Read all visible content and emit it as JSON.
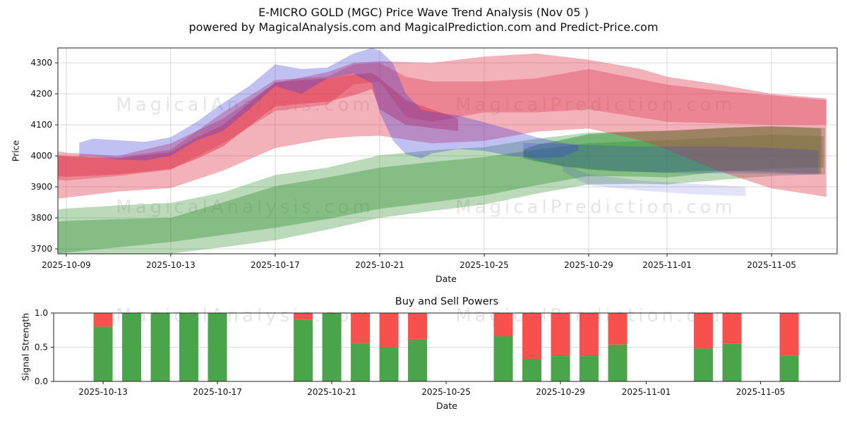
{
  "figure": {
    "title_line1": "E-MICRO GOLD (MGC) Price Wave Trend Analysis (Nov 05 )",
    "title_line2": "powered by MagicalAnalysis.com and MagicalPrediction.com and Predict-Price.com",
    "watermark_left": "MagicalAnalysis.com",
    "watermark_right": "MagicalPrediction.com",
    "watermark_color": "#8a8a8a",
    "background": "#ffffff",
    "grid_color": "#d9d9d9",
    "spine_color": "#222222",
    "text_color": "#121212"
  },
  "chart_data": [
    {
      "type": "area",
      "name": "price-wave-trend",
      "xlabel": "Date",
      "ylabel": "Price",
      "x_ticks": [
        "2025-10-09",
        "2025-10-13",
        "2025-10-17",
        "2025-10-21",
        "2025-10-25",
        "2025-10-29",
        "2025-11-01",
        "2025-11-05"
      ],
      "x_tick_days": [
        0,
        4,
        8,
        12,
        16,
        20,
        23,
        27
      ],
      "y_ticks": [
        3700,
        3800,
        3900,
        4000,
        4100,
        4200,
        4300
      ],
      "x_origin_date": "2025-10-09",
      "x_range_days": [
        -0.32,
        29.51
      ],
      "y_range": [
        3684,
        4348
      ],
      "grid": true,
      "legend": "none",
      "bands": [
        {
          "name": "green-outer",
          "color": "#2f8f2f",
          "opacity": 0.33,
          "x": [
            -0.3,
            0,
            2,
            4,
            6,
            8,
            10,
            12,
            14,
            16,
            18,
            20,
            22,
            23,
            25,
            27,
            28,
            29.05
          ],
          "upper": [
            3828,
            3830,
            3840,
            3848,
            3882,
            3938,
            3962,
            4002,
            4018,
            4028,
            4055,
            4075,
            4080,
            4082,
            4088,
            4095,
            4093,
            4090
          ],
          "lower": [
            3648,
            3650,
            3668,
            3685,
            3705,
            3728,
            3762,
            3800,
            3822,
            3843,
            3878,
            3908,
            3910,
            3908,
            3922,
            3935,
            3938,
            3940
          ]
        },
        {
          "name": "green-inner",
          "color": "#2f8f2f",
          "opacity": 0.38,
          "x": [
            -0.3,
            0,
            2,
            4,
            6,
            8,
            10,
            12,
            14,
            16,
            18,
            20,
            22,
            23,
            25,
            27,
            28,
            29.0
          ],
          "upper": [
            3788,
            3790,
            3796,
            3800,
            3850,
            3902,
            3930,
            3962,
            3980,
            3996,
            4020,
            4040,
            4048,
            4050,
            4060,
            4068,
            4066,
            4063
          ],
          "lower": [
            3686,
            3688,
            3705,
            3722,
            3745,
            3768,
            3796,
            3829,
            3850,
            3872,
            3905,
            3935,
            3933,
            3930,
            3948,
            3958,
            3962,
            3962
          ]
        },
        {
          "name": "green-forecast",
          "color": "#2f8f2f",
          "opacity": 0.5,
          "x": [
            17.5,
            18,
            19,
            20,
            21,
            22,
            23,
            24,
            25,
            26,
            27,
            28,
            28.9
          ],
          "upper": [
            4020,
            4035,
            4052,
            4070,
            4075,
            4078,
            4080,
            4085,
            4090,
            4093,
            4095,
            4092,
            4088
          ],
          "lower": [
            3992,
            3982,
            3966,
            3956,
            3950,
            3948,
            3946,
            3950,
            3952,
            3950,
            3948,
            3944,
            3942
          ]
        },
        {
          "name": "red-outer",
          "color": "#e0314a",
          "opacity": 0.38,
          "x": [
            -0.3,
            0,
            2,
            4,
            6,
            8,
            10,
            11,
            12,
            14,
            16,
            18,
            20,
            22,
            23,
            25,
            27,
            29.1
          ],
          "upper": [
            4015,
            4010,
            4000,
            4040,
            4120,
            4235,
            4270,
            4300,
            4305,
            4300,
            4320,
            4330,
            4310,
            4280,
            4255,
            4230,
            4200,
            4185
          ],
          "lower": [
            3862,
            3865,
            3885,
            3896,
            3952,
            4025,
            4055,
            4062,
            4065,
            4040,
            4048,
            4078,
            4088,
            4050,
            4020,
            3950,
            3895,
            3868
          ]
        },
        {
          "name": "red-mid",
          "color": "#e0314a",
          "opacity": 0.34,
          "x": [
            -0.3,
            0,
            2,
            4,
            6,
            8,
            10,
            11,
            12,
            13,
            14,
            16,
            18,
            20,
            23,
            25,
            27,
            29.1
          ],
          "upper": [
            4002,
            4000,
            3995,
            4020,
            4140,
            4245,
            4255,
            4295,
            4300,
            4255,
            4240,
            4240,
            4250,
            4280,
            4230,
            4210,
            4195,
            4180
          ],
          "lower": [
            3922,
            3920,
            3935,
            3955,
            4040,
            4145,
            4165,
            4230,
            4240,
            4125,
            4110,
            4140,
            4140,
            4150,
            4110,
            4105,
            4100,
            4100
          ]
        },
        {
          "name": "red-core",
          "color": "#e0314a",
          "opacity": 0.45,
          "x": [
            -0.3,
            0,
            2,
            4,
            5,
            6,
            8,
            10,
            11,
            11.7,
            12,
            13,
            14,
            15
          ],
          "upper": [
            4000,
            3998,
            3992,
            4012,
            4060,
            4100,
            4238,
            4250,
            4262,
            4268,
            4250,
            4180,
            4150,
            4120
          ],
          "lower": [
            3934,
            3932,
            3940,
            3958,
            3990,
            4030,
            4160,
            4175,
            4195,
            4215,
            4150,
            4100,
            4090,
            4080
          ]
        },
        {
          "name": "blue-main",
          "color": "#3c3cd9",
          "opacity": 0.32,
          "x": [
            0.5,
            1,
            2,
            3,
            4,
            5,
            6,
            7,
            8,
            9,
            10,
            11,
            11.7,
            12,
            12.5,
            13,
            13.6,
            14,
            15,
            16,
            17,
            18,
            19,
            19.6
          ],
          "upper": [
            4042,
            4055,
            4050,
            4045,
            4060,
            4110,
            4170,
            4225,
            4295,
            4280,
            4285,
            4330,
            4348,
            4340,
            4300,
            4200,
            4150,
            4142,
            4130,
            4108,
            4085,
            4060,
            4042,
            4035
          ],
          "lower": [
            3998,
            3998,
            3988,
            3985,
            4000,
            4050,
            4080,
            4150,
            4225,
            4200,
            4250,
            4265,
            4235,
            4140,
            4050,
            4005,
            3992,
            4008,
            4022,
            4016,
            4000,
            3992,
            3996,
            4018
          ]
        },
        {
          "name": "blue-tail",
          "color": "#3c3cd9",
          "opacity": 0.24,
          "x": [
            17.5,
            18,
            19,
            20,
            21,
            22,
            23,
            24,
            25,
            26,
            27,
            28,
            28.8
          ],
          "upper": [
            4042,
            4040,
            4038,
            4035,
            4032,
            4030,
            4030,
            4030,
            4030,
            4028,
            4026,
            4022,
            4018
          ],
          "lower": [
            4002,
            3985,
            3968,
            3958,
            3952,
            3948,
            3945,
            3944,
            3944,
            3943,
            3942,
            3940,
            3940
          ]
        },
        {
          "name": "blue-sliver",
          "color": "#3c3cd9",
          "opacity": 0.15,
          "x": [
            19,
            20,
            22,
            24,
            26
          ],
          "upper": [
            3975,
            3940,
            3920,
            3910,
            3900
          ],
          "lower": [
            3950,
            3905,
            3888,
            3876,
            3870
          ]
        }
      ]
    },
    {
      "type": "bar",
      "name": "buy-sell-powers",
      "title": "Buy and Sell Powers",
      "xlabel": "Date",
      "ylabel": "Signal Strength",
      "x_ticks": [
        "2025-10-13",
        "2025-10-17",
        "2025-10-21",
        "2025-10-25",
        "2025-10-29",
        "2025-11-01",
        "2025-11-05"
      ],
      "y_ticks": [
        "0.0",
        "0.5",
        "1.0"
      ],
      "x_origin_date": "2025-10-13",
      "ylim": [
        0,
        1
      ],
      "buy_color": "#4aa54a",
      "sell_color": "#f8504d",
      "bars": [
        {
          "date": "2025-10-13",
          "buy": 0.8,
          "sell": 0.2
        },
        {
          "date": "2025-10-14",
          "buy": 1.0,
          "sell": 0.0
        },
        {
          "date": "2025-10-15",
          "buy": 1.0,
          "sell": 0.0
        },
        {
          "date": "2025-10-16",
          "buy": 1.0,
          "sell": 0.0
        },
        {
          "date": "2025-10-17",
          "buy": 1.0,
          "sell": 0.0
        },
        {
          "date": "2025-10-20",
          "buy": 0.9,
          "sell": 0.1
        },
        {
          "date": "2025-10-21",
          "buy": 1.0,
          "sell": 0.0
        },
        {
          "date": "2025-10-22",
          "buy": 0.56,
          "sell": 0.44
        },
        {
          "date": "2025-10-23",
          "buy": 0.5,
          "sell": 0.5
        },
        {
          "date": "2025-10-24",
          "buy": 0.62,
          "sell": 0.38
        },
        {
          "date": "2025-10-27",
          "buy": 0.66,
          "sell": 0.34
        },
        {
          "date": "2025-10-28",
          "buy": 0.33,
          "sell": 0.67
        },
        {
          "date": "2025-10-29",
          "buy": 0.37,
          "sell": 0.63
        },
        {
          "date": "2025-10-30",
          "buy": 0.37,
          "sell": 0.63
        },
        {
          "date": "2025-10-31",
          "buy": 0.54,
          "sell": 0.46
        },
        {
          "date": "2025-11-03",
          "buy": 0.48,
          "sell": 0.52
        },
        {
          "date": "2025-11-04",
          "buy": 0.55,
          "sell": 0.45
        },
        {
          "date": "2025-11-06",
          "buy": 0.38,
          "sell": 0.62
        }
      ]
    }
  ]
}
